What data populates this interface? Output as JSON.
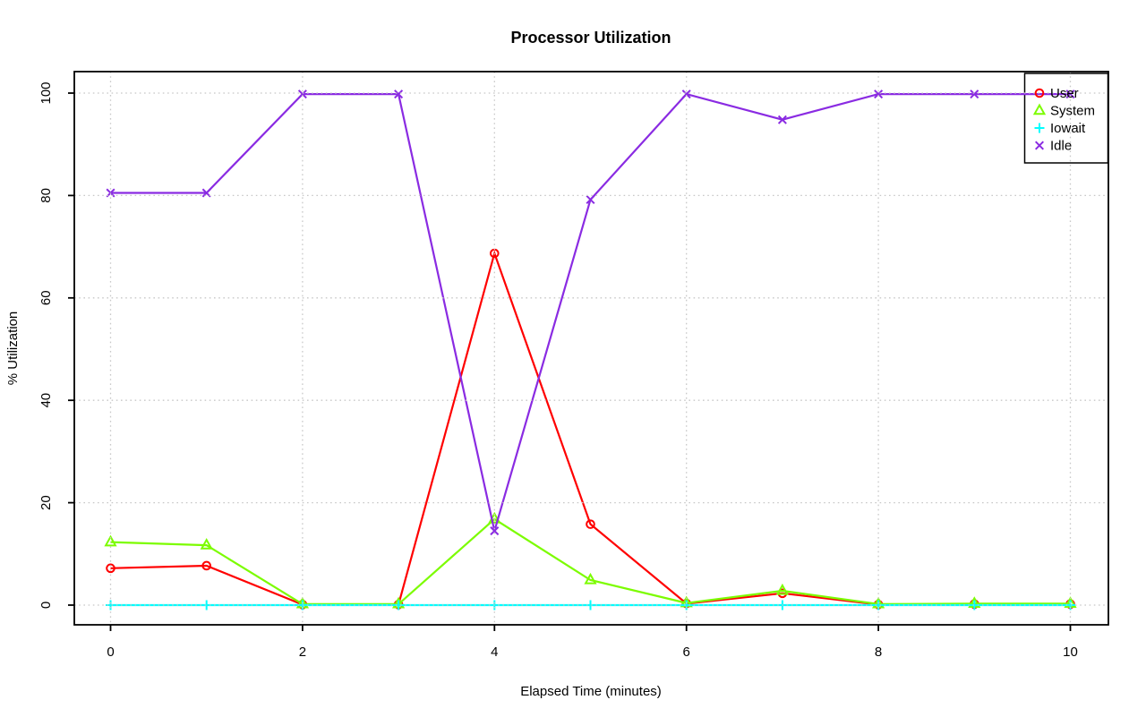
{
  "chart_data": {
    "type": "line",
    "title": "Processor Utilization",
    "xlabel": "Elapsed Time (minutes)",
    "ylabel": "% Utilization",
    "xlim": [
      0,
      10
    ],
    "ylim": [
      0,
      100
    ],
    "xticks": [
      "0",
      "2",
      "4",
      "6",
      "8",
      "10"
    ],
    "xtick_values": [
      0,
      2,
      4,
      6,
      8,
      10
    ],
    "yticks": [
      "0",
      "20",
      "40",
      "60",
      "80",
      "100"
    ],
    "ytick_values": [
      0,
      20,
      40,
      60,
      80,
      100
    ],
    "grid": {
      "style": "dotted",
      "color": "#c8c8c8",
      "on_ticks_only": true,
      "drawn_above_series": true
    },
    "legend_position": "top-right",
    "x": [
      0,
      1,
      2,
      3,
      4,
      5,
      6,
      7,
      8,
      9,
      10
    ],
    "series": [
      {
        "name": "User",
        "color": "#ff0000",
        "marker": "circle",
        "values": [
          7.2,
          7.7,
          0.1,
          0.1,
          68.7,
          15.8,
          0.3,
          2.3,
          0.1,
          0.2,
          0.2
        ]
      },
      {
        "name": "System",
        "color": "#7cfc00",
        "marker": "triangle",
        "values": [
          12.3,
          11.7,
          0.2,
          0.2,
          16.8,
          4.9,
          0.4,
          2.8,
          0.2,
          0.3,
          0.3
        ]
      },
      {
        "name": "Iowait",
        "color": "#00ffff",
        "marker": "plus",
        "values": [
          0,
          0,
          0,
          0,
          0,
          0,
          0,
          0,
          0,
          0,
          0
        ]
      },
      {
        "name": "Idle",
        "color": "#8a2be2",
        "marker": "x",
        "values": [
          80.5,
          80.5,
          99.8,
          99.8,
          14.5,
          79.2,
          99.8,
          94.8,
          99.8,
          99.8,
          99.8
        ]
      }
    ]
  }
}
